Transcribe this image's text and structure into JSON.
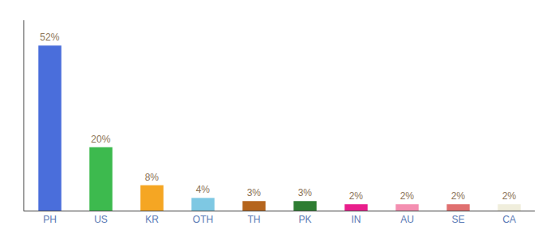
{
  "chart_data": {
    "type": "bar",
    "categories": [
      "PH",
      "US",
      "KR",
      "OTH",
      "TH",
      "PK",
      "IN",
      "AU",
      "SE",
      "CA"
    ],
    "values": [
      52,
      20,
      8,
      4,
      3,
      3,
      2,
      2,
      2,
      2
    ],
    "value_labels": [
      "52%",
      "20%",
      "8%",
      "4%",
      "3%",
      "3%",
      "2%",
      "2%",
      "2%",
      "2%"
    ],
    "colors": [
      "#4a6edb",
      "#3dba4e",
      "#f5a623",
      "#7ec8e3",
      "#b5651d",
      "#2e7d32",
      "#e91e8c",
      "#f48fb1",
      "#e07070",
      "#f0eedc"
    ],
    "ylim": [
      0,
      60
    ],
    "data_labels": true,
    "tick_labels": "x",
    "grid": false
  }
}
